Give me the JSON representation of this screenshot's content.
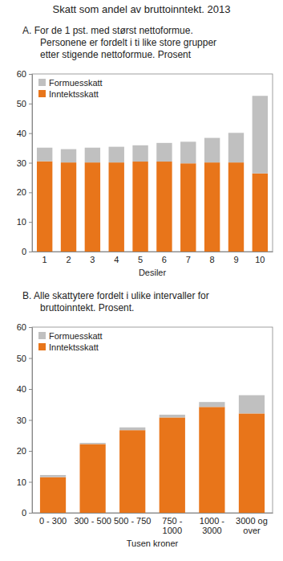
{
  "title": "Skatt som andel av bruttoinntekt. 2013",
  "chart_data": [
    {
      "type": "bar",
      "stacked": true,
      "legend": "top-left",
      "grid": false,
      "title": [
        "A.  For de 1 pst. med størst nettoformue.",
        "Personene er fordelt i ti like store grupper",
        "etter stigende nettoformue. Prosent"
      ],
      "x_label": "Desiler",
      "categories": [
        "1",
        "2",
        "3",
        "4",
        "5",
        "6",
        "7",
        "8",
        "9",
        "10"
      ],
      "ylim": [
        0,
        60
      ],
      "yticks": [
        0,
        10,
        20,
        30,
        40,
        50,
        60
      ],
      "series": [
        {
          "name": "Inntektsskatt",
          "color": "#e8751a",
          "values": [
            30.5,
            30.1,
            30.1,
            30.1,
            30.4,
            30.4,
            29.8,
            30.1,
            30.1,
            26.4
          ]
        },
        {
          "name": "Formuesskatt",
          "color": "#c0c0c0",
          "values": [
            4.6,
            4.5,
            5.0,
            5.3,
            5.5,
            6.3,
            7.3,
            8.3,
            10.0,
            26.2
          ]
        }
      ]
    },
    {
      "type": "bar",
      "stacked": true,
      "legend": "top-left",
      "grid": false,
      "title": [
        "B.  Alle skattytere fordelt i ulike intervaller for",
        "bruttoinntekt. Prosent."
      ],
      "x_label": "Tusen kroner",
      "categories": [
        "0 - 300",
        "300 - 500",
        "500 - 750",
        "750 - 1000",
        "1000 - 3000",
        "3000 og over"
      ],
      "ylim": [
        0,
        60
      ],
      "yticks": [
        0,
        10,
        20,
        30,
        40,
        50,
        60
      ],
      "series": [
        {
          "name": "Inntektsskatt",
          "color": "#e8751a",
          "values": [
            11.5,
            22.2,
            26.7,
            30.8,
            34.2,
            32.1
          ]
        },
        {
          "name": "Formuesskatt",
          "color": "#c0c0c0",
          "values": [
            0.7,
            0.4,
            0.9,
            0.9,
            1.6,
            5.9
          ]
        }
      ]
    }
  ]
}
